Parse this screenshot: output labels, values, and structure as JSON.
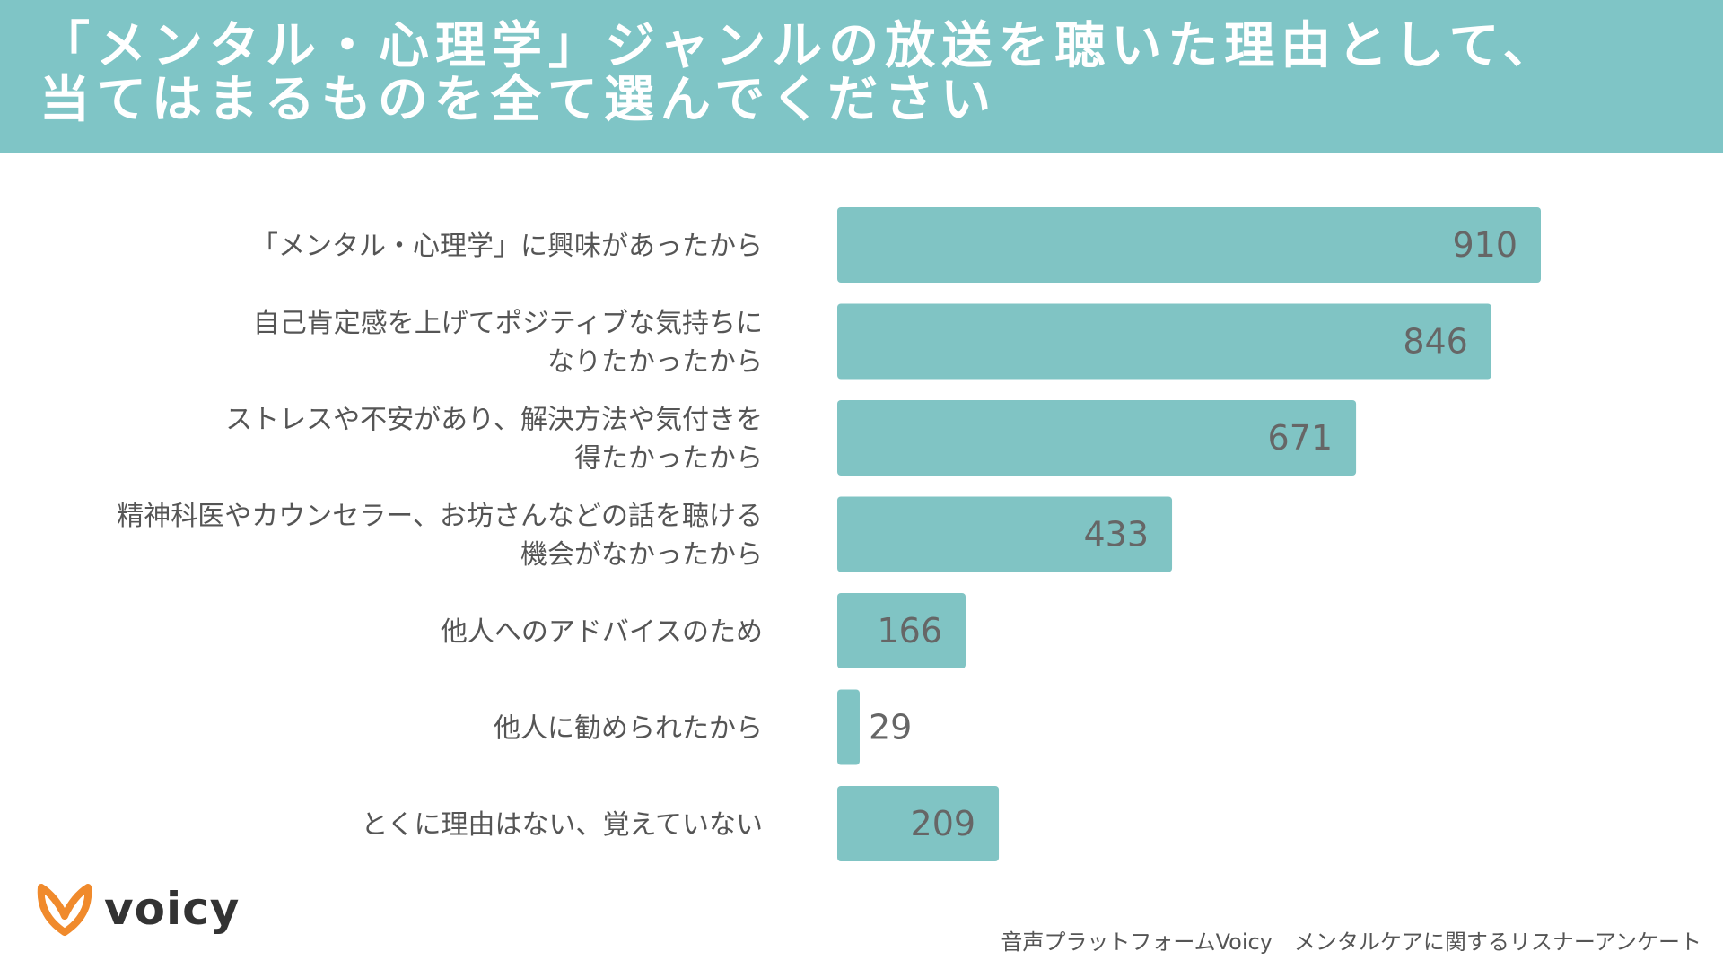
{
  "header": {
    "title_line1": "「メンタル・心理学」ジャンルの放送を聴いた理由として、",
    "title_line2": "当てはまるものを全て選んでください"
  },
  "colors": {
    "accent": "#7fc5c6",
    "bar": "#80c4c4",
    "logo": "#f08a2c"
  },
  "chart_data": {
    "type": "bar",
    "orientation": "horizontal",
    "categories": [
      [
        "「メンタル・心理学」に興味があったから"
      ],
      [
        "自己肯定感を上げてポジティブな気持ちに",
        "なりたかったから"
      ],
      [
        "ストレスや不安があり、解決方法や気付きを",
        "得たかったから"
      ],
      [
        "精神科医やカウンセラー、お坊さんなどの話を聴ける",
        "機会がなかったから"
      ],
      [
        "他人へのアドバイスのため"
      ],
      [
        "他人に勧められたから"
      ],
      [
        "とくに理由はない、覚えていない"
      ]
    ],
    "values": [
      910,
      846,
      671,
      433,
      166,
      29,
      209
    ],
    "title": "",
    "xlabel": "",
    "ylabel": "",
    "xlim": [
      0,
      1000
    ],
    "grid": false,
    "legend": "none"
  },
  "logo": {
    "text": "voicy",
    "icon": "voicy-logo-icon"
  },
  "footer": {
    "source": "音声プラットフォームVoicy　メンタルケアに関するリスナーアンケート"
  }
}
